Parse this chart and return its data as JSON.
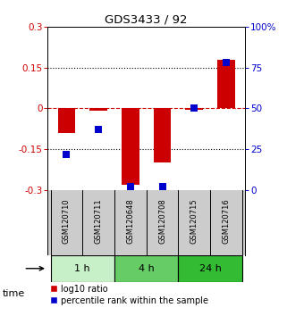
{
  "title": "GDS3433 / 92",
  "samples": [
    "GSM120710",
    "GSM120711",
    "GSM120648",
    "GSM120708",
    "GSM120715",
    "GSM120716"
  ],
  "log10_ratio": [
    -0.09,
    -0.01,
    -0.28,
    -0.2,
    -0.005,
    0.18
  ],
  "percentile_rank": [
    22,
    37,
    2,
    2,
    50,
    78
  ],
  "ylim_left": [
    -0.3,
    0.3
  ],
  "ylim_right": [
    0,
    100
  ],
  "yticks_left": [
    -0.3,
    -0.15,
    0,
    0.15,
    0.3
  ],
  "yticks_right": [
    0,
    25,
    50,
    75,
    100
  ],
  "ytick_labels_left": [
    "-0.3",
    "-0.15",
    "0",
    "0.15",
    "0.3"
  ],
  "ytick_labels_right": [
    "0",
    "25",
    "50",
    "75",
    "100%"
  ],
  "time_groups": [
    {
      "label": "1 h",
      "start": 0,
      "end": 2,
      "color": "#c8f0c8"
    },
    {
      "label": "4 h",
      "start": 2,
      "end": 4,
      "color": "#66cc66"
    },
    {
      "label": "24 h",
      "start": 4,
      "end": 6,
      "color": "#33bb33"
    }
  ],
  "bar_color": "#cc0000",
  "dot_color": "#0000cc",
  "bar_width": 0.55,
  "dot_size": 40,
  "hline_color": "#cc0000",
  "dotted_lines": [
    -0.15,
    0.15
  ],
  "dotted_color": "black",
  "bg_color": "#ffffff",
  "legend_bar_label": "log10 ratio",
  "legend_dot_label": "percentile rank within the sample",
  "time_label": "time",
  "sample_box_color": "#cccccc"
}
